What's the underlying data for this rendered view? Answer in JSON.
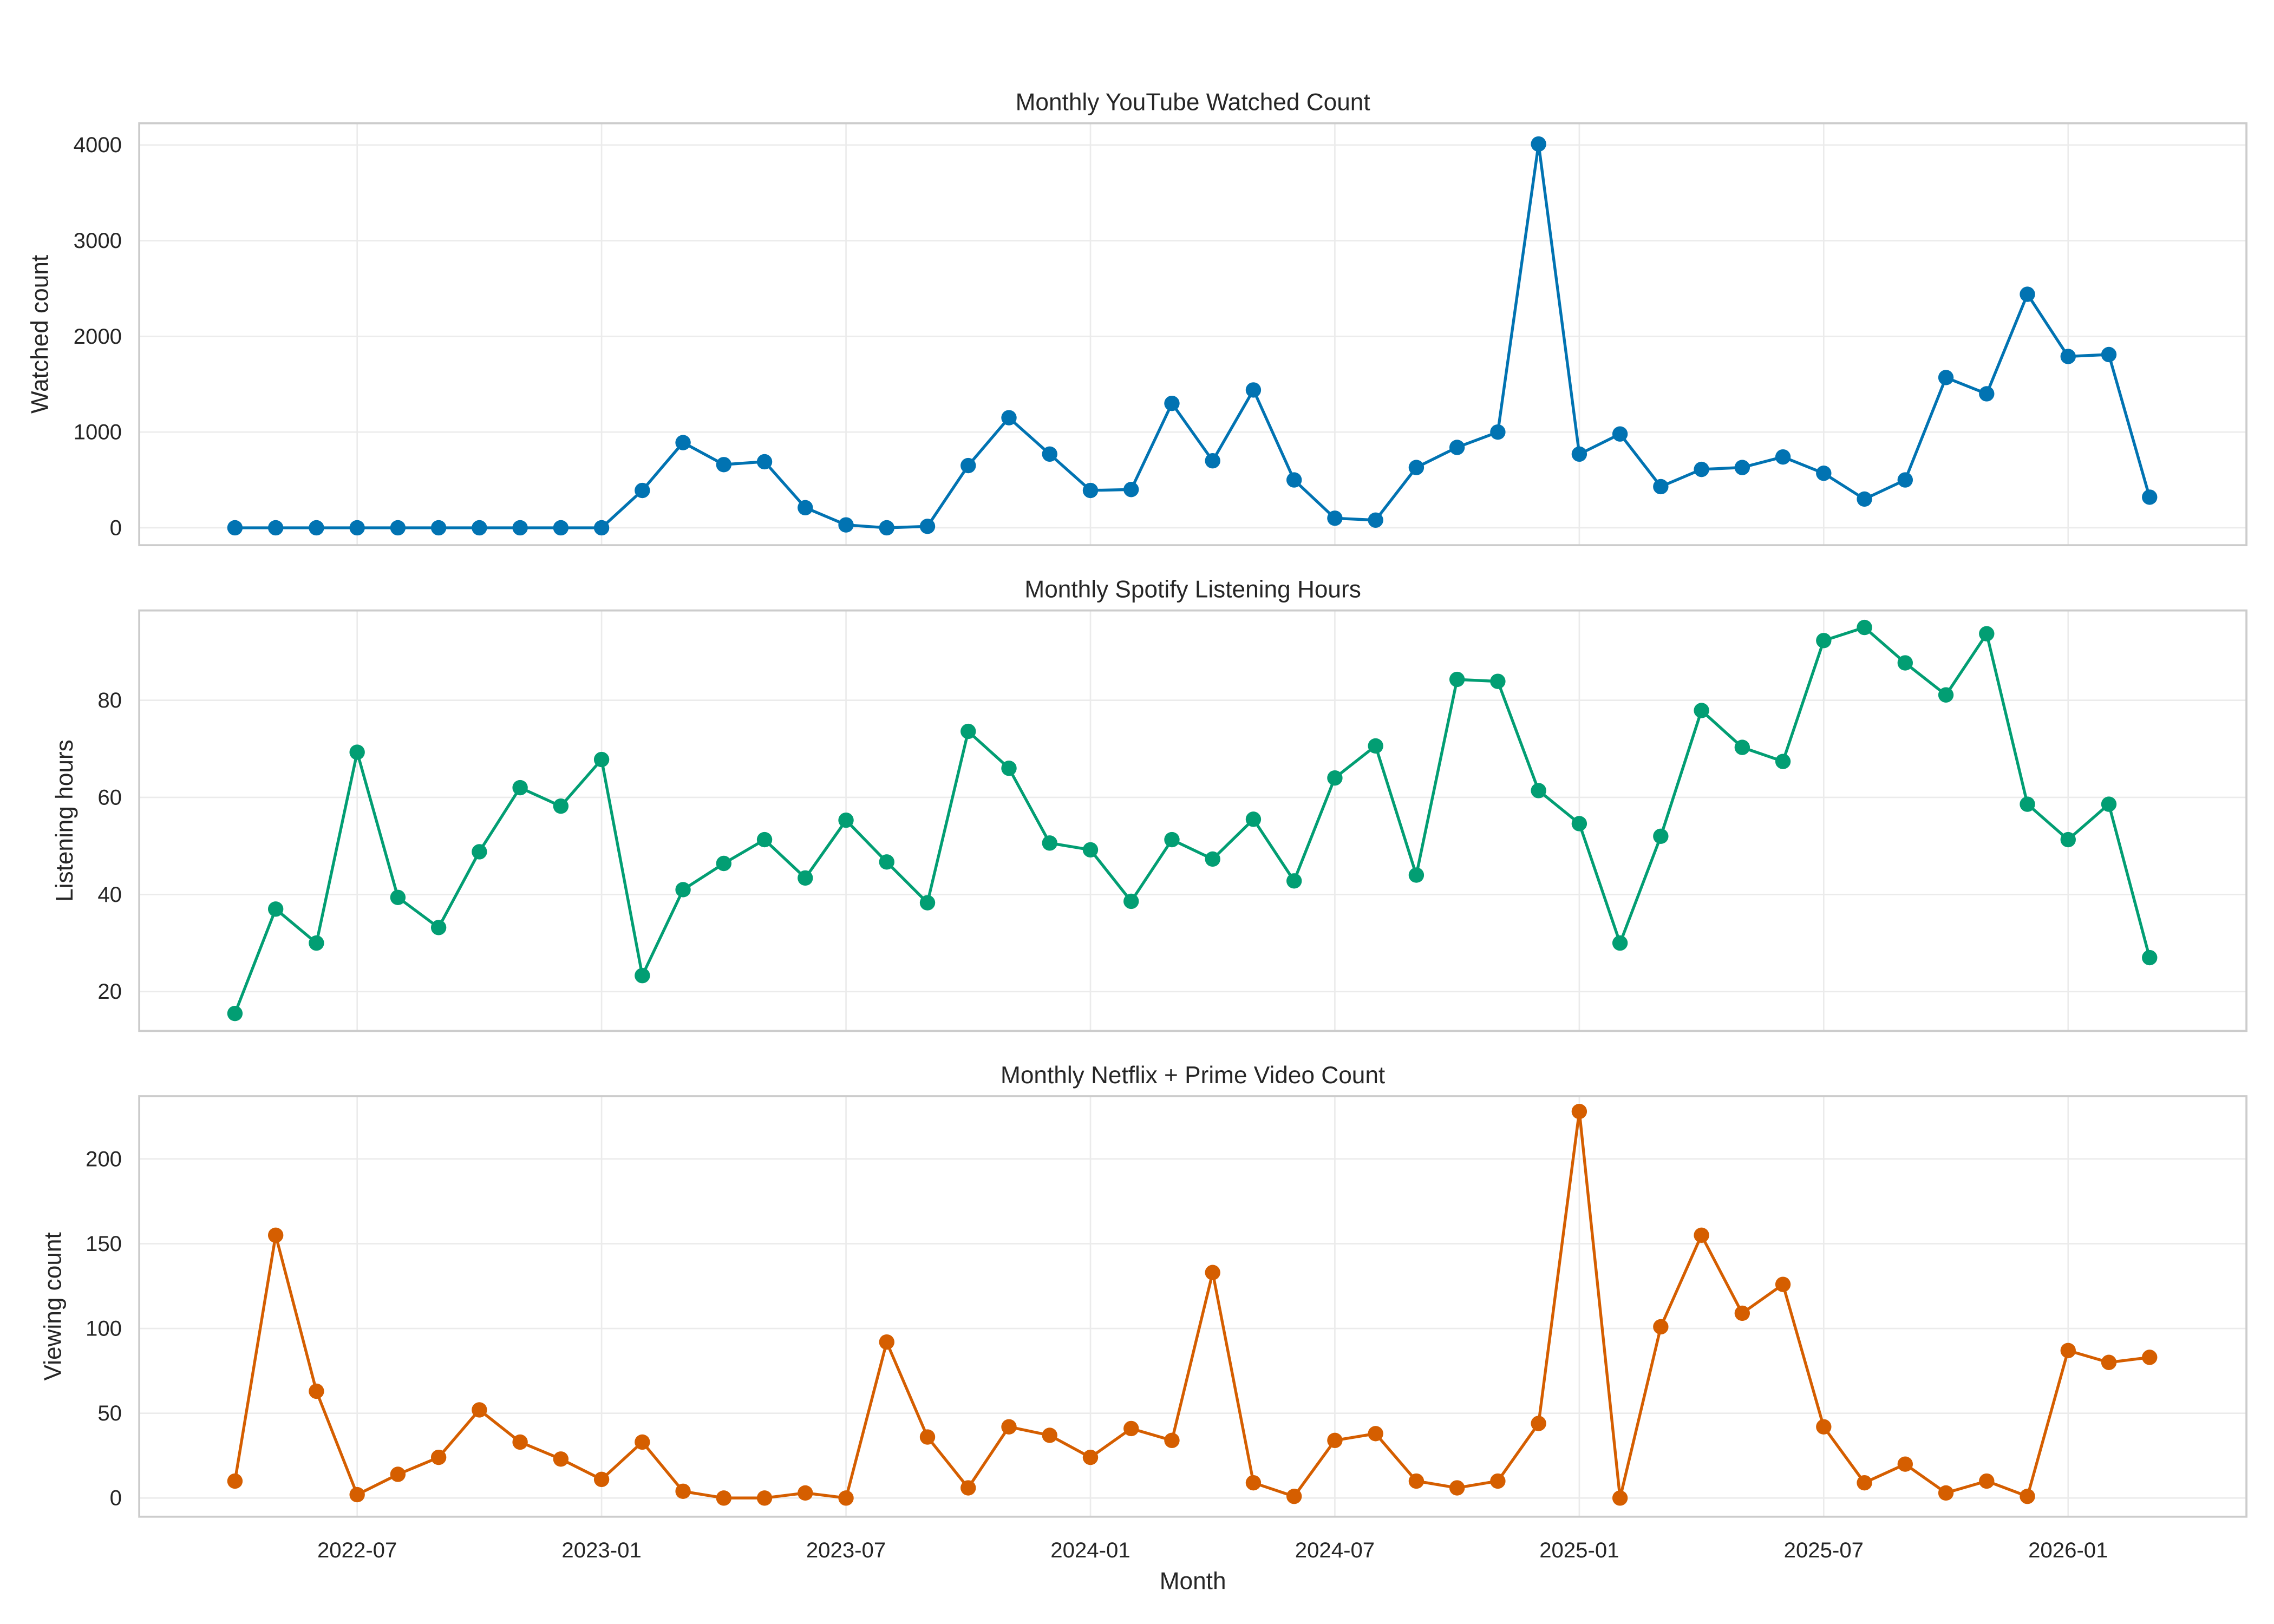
{
  "chart_data": [
    {
      "type": "line",
      "title": "Monthly YouTube Watched Count",
      "xlabel": "",
      "ylabel": "Watched count",
      "ylim": [
        -182,
        4227
      ],
      "yticks": [
        0,
        1000,
        2000,
        3000,
        4000
      ],
      "grid": true,
      "color": "#0173b2",
      "x_start": "2022-04",
      "x_end": "2026-03",
      "values": [
        0,
        0,
        0,
        0,
        0,
        0,
        0,
        0,
        0,
        0,
        390,
        890,
        660,
        690,
        210,
        30,
        0,
        15,
        650,
        1150,
        770,
        390,
        400,
        1300,
        700,
        1440,
        500,
        100,
        80,
        630,
        840,
        1000,
        4010,
        770,
        980,
        430,
        610,
        630,
        740,
        570,
        300,
        500,
        1570,
        1400,
        2440,
        1790,
        1810,
        320
      ]
    },
    {
      "type": "line",
      "title": "Monthly Spotify Listening Hours",
      "xlabel": "",
      "ylabel": "Listening hours",
      "ylim": [
        11.9,
        98.5
      ],
      "yticks": [
        20,
        40,
        60,
        80
      ],
      "grid": true,
      "color": "#029e73",
      "x_start": "2022-04",
      "x_end": "2026-03",
      "values": [
        15.5,
        37,
        30,
        69.3,
        39.4,
        33.2,
        48.8,
        62,
        58.2,
        67.8,
        23.3,
        41,
        46.4,
        51.3,
        43.4,
        55.3,
        46.7,
        38.3,
        73.6,
        66,
        50.6,
        49.2,
        38.6,
        51.3,
        47.3,
        55.5,
        42.8,
        64,
        70.6,
        44,
        84.3,
        83.9,
        61.4,
        54.6,
        30,
        52,
        77.9,
        70.3,
        67.4,
        92.3,
        95,
        87.7,
        81.1,
        93.7,
        58.6,
        51.3,
        58.6,
        27
      ]
    },
    {
      "type": "line",
      "title": "Monthly Netflix + Prime Video Count",
      "xlabel": "Month",
      "ylabel": "Viewing count",
      "ylim": [
        -11,
        237
      ],
      "yticks": [
        0,
        50,
        100,
        150,
        200
      ],
      "grid": true,
      "color": "#d55e00",
      "x_start": "2022-04",
      "x_end": "2026-03",
      "xticks": [
        "2022-07",
        "2023-01",
        "2023-07",
        "2024-01",
        "2024-07",
        "2025-01",
        "2025-07",
        "2026-01"
      ],
      "values": [
        10,
        155,
        63,
        2,
        14,
        24,
        52,
        33,
        23,
        11,
        33,
        4,
        0,
        0,
        3,
        0,
        92,
        36,
        6,
        42,
        37,
        24,
        41,
        34,
        133,
        9,
        1,
        34,
        38,
        10,
        6,
        10,
        44,
        228,
        0,
        101,
        155,
        109,
        126,
        42,
        9,
        20,
        3,
        10,
        1,
        87,
        80,
        83
      ]
    }
  ]
}
